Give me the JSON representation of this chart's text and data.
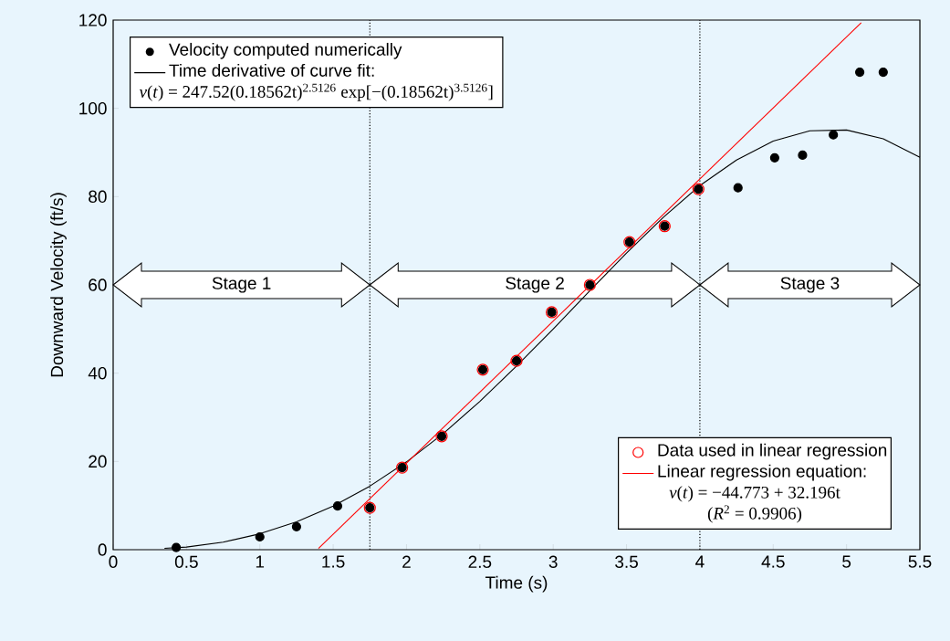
{
  "chart_data": {
    "type": "scatter",
    "xlabel": "Time (s)",
    "ylabel": "Downward Velocity (ft/s)",
    "xlim": [
      0,
      5.5
    ],
    "ylim": [
      0,
      120
    ],
    "xticks": [
      0,
      0.5,
      1,
      1.5,
      2,
      2.5,
      3,
      3.5,
      4,
      4.5,
      5,
      5.5
    ],
    "yticks": [
      0,
      20,
      40,
      60,
      80,
      100,
      120
    ],
    "grid": false,
    "legend": "top left",
    "line_style": "solid",
    "series": [
      {
        "name": "Velocity computed numerically",
        "marker": "circle",
        "color": "#000000",
        "x": [
          0.43,
          1.0,
          1.25,
          1.53,
          1.75,
          1.97,
          2.24,
          2.52,
          2.75,
          2.99,
          3.25,
          3.52,
          3.76,
          3.99,
          4.26,
          4.51,
          4.7,
          4.91,
          5.09,
          5.25
        ],
        "values": [
          0.5,
          2.9,
          5.2,
          9.9,
          9.5,
          18.6,
          25.7,
          40.8,
          42.8,
          53.8,
          60,
          69.7,
          73.3,
          81.7,
          82,
          88.8,
          89.4,
          94,
          108.2,
          108.2
        ]
      },
      {
        "name": "Time derivative of curve fit:",
        "type": "line",
        "marker": "none",
        "color": "#000000",
        "x": [
          0.35,
          0.5,
          0.75,
          1,
          1.25,
          1.5,
          1.75,
          2,
          2.25,
          2.5,
          2.75,
          3,
          3.25,
          3.5,
          3.75,
          4,
          4.25,
          4.5,
          4.75,
          5,
          5.25,
          5.5
        ],
        "values": [
          0.3,
          0.6,
          1.7,
          3.6,
          6.3,
          9.9,
          14.4,
          19.9,
          26.3,
          33.6,
          41.6,
          50.0,
          58.7,
          67.2,
          75.3,
          82.5,
          88.3,
          92.6,
          94.9,
          95.1,
          93.1,
          88.9
        ]
      },
      {
        "name": "Data used in linear regression",
        "marker": "circle",
        "color": "#ff0000",
        "x": [
          1.75,
          1.97,
          2.24,
          2.52,
          2.75,
          2.99,
          3.25,
          3.52,
          3.76,
          3.99
        ],
        "values": [
          9.5,
          18.6,
          25.7,
          40.8,
          42.8,
          53.8,
          60,
          69.7,
          73.3,
          81.7
        ]
      },
      {
        "name": "Linear regression equation:",
        "type": "line",
        "marker": "none",
        "color": "#ff0000",
        "x": [
          1.4,
          5.1
        ],
        "values": [
          0.3,
          119.4
        ]
      }
    ],
    "ref_lines": [
      {
        "axis": "x",
        "value": 1.75,
        "color": "#000000",
        "line_style": "dotted"
      },
      {
        "axis": "x",
        "value": 4,
        "color": "#000000",
        "line_style": "dotted"
      }
    ],
    "annotations": [
      "*v*(*t*) = 247.52(0.18562t)$^{2.5126}$ exp[−(0.18562t)$^{3.5126}$]",
      "*v*(*t*) = −44.773 + 32.196t",
      "(*R*$^{2}$ = 0.9906)",
      "Stage 1",
      "Stage 2",
      "Stage 3"
    ]
  }
}
